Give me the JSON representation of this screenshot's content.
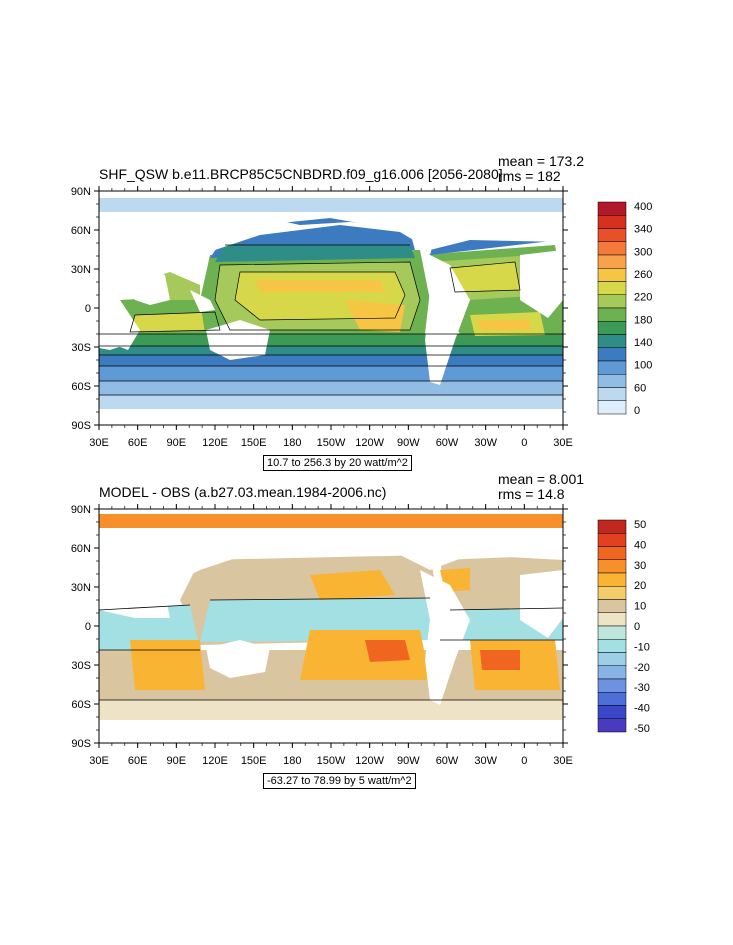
{
  "panels": [
    {
      "title": "SHF_QSW b.e11.BRCP85C5CNBDRD.f09_g16.006 [2056-2080]",
      "mean": "mean = 173.2",
      "rms": "rms = 182",
      "range_label": "10.7 to 256.3 by 20 watt/m^2",
      "lat_labels": [
        "90N",
        "60N",
        "30N",
        "0",
        "30S",
        "60S",
        "90S"
      ],
      "lon_labels": [
        "30E",
        "60E",
        "90E",
        "120E",
        "150E",
        "180",
        "150W",
        "120W",
        "90W",
        "60W",
        "30W",
        "0",
        "30E"
      ],
      "colorbar": {
        "labels": [
          "400",
          "340",
          "300",
          "260",
          "220",
          "180",
          "140",
          "100",
          "60",
          "0"
        ],
        "colors": [
          "#b2182b",
          "#d6301e",
          "#e8502a",
          "#f2793a",
          "#f8a24a",
          "#f6c543",
          "#d6d84a",
          "#a6c95b",
          "#6db151",
          "#3d9a56",
          "#2f8d88",
          "#3c7bbf",
          "#5f9ad6",
          "#8fbde6",
          "#bcd9f0",
          "#ddeefa"
        ]
      },
      "colors": {
        "ocean_polar": "#bcd9f0",
        "ocean_high": "#5f9ad6",
        "ocean_mid": "#3d9a56",
        "ocean_mid2": "#6db151",
        "ocean_sub": "#a6c95b",
        "ocean_trop": "#d6d84a",
        "ocean_warm": "#f6c543",
        "land": "#ffffff"
      }
    },
    {
      "title": "MODEL - OBS (a.b27.03.mean.1984-2006.nc)",
      "mean": "mean = 8.001",
      "rms": "rms = 14.8",
      "range_label": "-63.27 to 78.99 by 5 watt/m^2",
      "lat_labels": [
        "90N",
        "60N",
        "30N",
        "0",
        "30S",
        "60S",
        "90S"
      ],
      "lon_labels": [
        "30E",
        "60E",
        "90E",
        "120E",
        "150E",
        "180",
        "150W",
        "120W",
        "90W",
        "60W",
        "30W",
        "0",
        "30E"
      ],
      "colorbar": {
        "labels": [
          "50",
          "40",
          "30",
          "20",
          "10",
          "0",
          "-10",
          "-20",
          "-30",
          "-40",
          "-50"
        ],
        "colors": [
          "#c0271d",
          "#e2401f",
          "#f0651f",
          "#f7902a",
          "#fab434",
          "#f5cc6a",
          "#d9c5a0",
          "#efe3c5",
          "#bfe6dd",
          "#a3e0e4",
          "#9ccfe8",
          "#87b3e6",
          "#6d93e0",
          "#4f6fd8",
          "#3b47c9",
          "#4a3ac0"
        ]
      },
      "colors": {
        "tan": "#d9c5a0",
        "cream": "#efe3c5",
        "cyan": "#a3e0e4",
        "orange": "#fab434",
        "deep_orange": "#f0651f",
        "land": "#ffffff"
      }
    }
  ]
}
